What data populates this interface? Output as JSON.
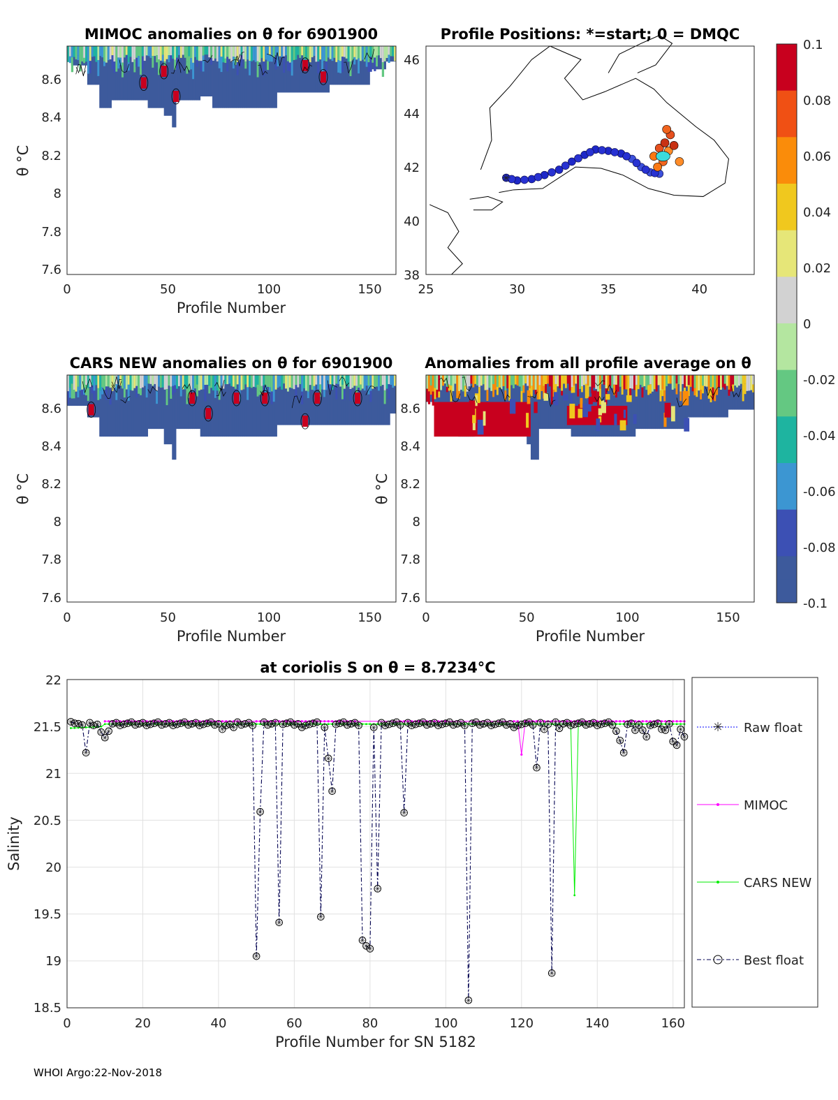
{
  "footer": "WHOI Argo:22-Nov-2018",
  "colors": {
    "deep": "#3d5a9c",
    "red": "#c8001e",
    "green": "#00ee00",
    "magenta": "#ff00ff",
    "blue": "#0000ff",
    "navy": "#000050"
  },
  "colorbar": {
    "ticks": [
      "0.1",
      "0.08",
      "0.06",
      "0.04",
      "0.02",
      "0",
      "-0.02",
      "-0.04",
      "-0.06",
      "-0.08",
      "-0.1"
    ],
    "stops": [
      "#c8001e",
      "#f05014",
      "#fa8c0a",
      "#f0c81e",
      "#e6e678",
      "#d2d2d2",
      "#b4e6a0",
      "#64c882",
      "#1eb4a0",
      "#3c96d2",
      "#3c50b4",
      "#3d5a9c"
    ]
  },
  "chart_data": [
    {
      "id": "mimoc",
      "type": "heatmap",
      "title": "MIMOC anomalies on θ  for 6901900",
      "xlabel": "Profile Number",
      "ylabel": "θ °C",
      "xlim": [
        0,
        163
      ],
      "ylim": [
        7.58,
        8.76
      ],
      "xticks": [
        "0",
        "50",
        "100",
        "150"
      ],
      "yticks": [
        "8.6",
        "8.4",
        "8.2",
        "8",
        "7.8",
        "7.6"
      ],
      "bottom_steps": [
        [
          0,
          8.68
        ],
        [
          2,
          8.66
        ],
        [
          10,
          8.56
        ],
        [
          16,
          8.44
        ],
        [
          22,
          8.48
        ],
        [
          30,
          8.48
        ],
        [
          40,
          8.44
        ],
        [
          48,
          8.4
        ],
        [
          52,
          8.34
        ],
        [
          54,
          8.48
        ],
        [
          66,
          8.5
        ],
        [
          72,
          8.44
        ],
        [
          104,
          8.52
        ],
        [
          130,
          8.56
        ],
        [
          150,
          8.64
        ],
        [
          158,
          8.68
        ],
        [
          163,
          8.68
        ]
      ],
      "red_spots": [
        [
          38,
          8.57
        ],
        [
          48,
          8.63
        ],
        [
          54,
          8.5
        ],
        [
          118,
          8.66
        ],
        [
          127,
          8.6
        ]
      ]
    },
    {
      "id": "map",
      "type": "scatter",
      "title": "Profile Positions: *=start; 0 = DMQC",
      "xlim": [
        25,
        43
      ],
      "ylim": [
        38,
        46.5
      ],
      "xticks": [
        "25",
        "30",
        "35",
        "40"
      ],
      "yticks": [
        "46",
        "44",
        "42",
        "40",
        "38"
      ],
      "start": [
        29.4,
        41.6
      ],
      "track_blue": [
        [
          29.4,
          41.6
        ],
        [
          30,
          41.5
        ],
        [
          30.8,
          41.55
        ],
        [
          31.5,
          41.7
        ],
        [
          32.3,
          41.9
        ],
        [
          33,
          42.2
        ],
        [
          33.7,
          42.45
        ],
        [
          34.3,
          42.65
        ],
        [
          35,
          42.6
        ],
        [
          35.7,
          42.5
        ],
        [
          36.3,
          42.3
        ],
        [
          36.8,
          42.0
        ],
        [
          37.3,
          41.8
        ],
        [
          37.8,
          41.75
        ]
      ],
      "track_warm": [
        [
          37.5,
          42.4
        ],
        [
          37.8,
          42.7
        ],
        [
          38.1,
          42.9
        ],
        [
          38.3,
          42.6
        ],
        [
          38.0,
          42.2
        ],
        [
          37.7,
          42.0
        ],
        [
          38.4,
          43.2
        ],
        [
          38.6,
          42.8
        ],
        [
          38.9,
          42.2
        ],
        [
          38.2,
          43.4
        ]
      ]
    },
    {
      "id": "cars",
      "type": "heatmap",
      "title": "CARS NEW anomalies on θ for 6901900",
      "xlabel": "Profile Number",
      "ylabel": "θ °C",
      "xlim": [
        0,
        163
      ],
      "ylim": [
        7.58,
        8.76
      ],
      "xticks": [
        "0",
        "50",
        "100",
        "150"
      ],
      "yticks": [
        "8.6",
        "8.4",
        "8.2",
        "8",
        "7.8",
        "7.6"
      ],
      "bottom_steps": [
        [
          0,
          8.6
        ],
        [
          10,
          8.54
        ],
        [
          16,
          8.44
        ],
        [
          40,
          8.48
        ],
        [
          48,
          8.4
        ],
        [
          52,
          8.32
        ],
        [
          54,
          8.48
        ],
        [
          66,
          8.44
        ],
        [
          104,
          8.5
        ],
        [
          160,
          8.56
        ],
        [
          163,
          8.56
        ]
      ],
      "red_spots": [
        [
          12,
          8.58
        ],
        [
          62,
          8.64
        ],
        [
          84,
          8.64
        ],
        [
          98,
          8.64
        ],
        [
          124,
          8.64
        ],
        [
          144,
          8.64
        ],
        [
          70,
          8.56
        ],
        [
          118,
          8.52
        ]
      ]
    },
    {
      "id": "allavg",
      "type": "heatmap",
      "title": "Anomalies from all profile average on θ",
      "xlabel": "Profile Number",
      "ylabel": "θ °C",
      "xlim": [
        0,
        163
      ],
      "ylim": [
        7.58,
        8.76
      ],
      "xticks": [
        "0",
        "50",
        "100",
        "150"
      ],
      "yticks": [
        "8.6",
        "8.4",
        "8.2",
        "8",
        "7.8",
        "7.6"
      ],
      "bottom_steps": [
        [
          0,
          8.62
        ],
        [
          6,
          8.56
        ],
        [
          16,
          8.44
        ],
        [
          24,
          8.48
        ],
        [
          38,
          8.48
        ],
        [
          50,
          8.4
        ],
        [
          52,
          8.32
        ],
        [
          56,
          8.48
        ],
        [
          72,
          8.44
        ],
        [
          104,
          8.48
        ],
        [
          130,
          8.54
        ],
        [
          150,
          8.58
        ],
        [
          163,
          8.58
        ]
      ],
      "red_region": [
        [
          4,
          8.62,
          52,
          8.44
        ],
        [
          70,
          8.6,
          100,
          8.5
        ]
      ]
    },
    {
      "id": "salinity",
      "type": "line",
      "title": "at coriolis S on θ = 8.7234°C",
      "xlabel": "Profile Number for SN 5182",
      "ylabel": "Salinity",
      "xlim": [
        0,
        163
      ],
      "ylim": [
        18.5,
        22
      ],
      "xticks": [
        "0",
        "20",
        "40",
        "60",
        "80",
        "100",
        "120",
        "140",
        "160"
      ],
      "yticks": [
        "22",
        "21.5",
        "21",
        "20.5",
        "20",
        "19.5",
        "19",
        "18.5"
      ],
      "legend": [
        "Raw float",
        "MIMOC",
        "CARS NEW",
        "Best float"
      ],
      "dips": {
        "1": 21.55,
        "3": 21.53,
        "5": 21.22,
        "9": 21.44,
        "10": 21.38,
        "11": 21.45,
        "41": 21.47,
        "44": 21.49,
        "50": 19.05,
        "51": 20.59,
        "56": 19.41,
        "62": 21.49,
        "67": 19.47,
        "68": 21.49,
        "69": 21.16,
        "70": 20.81,
        "78": 19.22,
        "79": 19.16,
        "80": 19.13,
        "81": 21.49,
        "82": 19.77,
        "89": 20.58,
        "106": 18.58,
        "118": 21.49,
        "124": 21.06,
        "126": 21.47,
        "128": 18.87,
        "130": 21.48,
        "145": 21.45,
        "146": 21.35,
        "147": 21.22,
        "150": 21.46,
        "152": 21.46,
        "153": 21.39,
        "157": 21.47,
        "158": 21.46,
        "160": 21.34,
        "161": 21.3,
        "162": 21.47,
        "163": 21.39
      },
      "mimoc_dips": {
        "120": 21.2
      },
      "cars_dips": {
        "134": 19.7
      }
    }
  ]
}
